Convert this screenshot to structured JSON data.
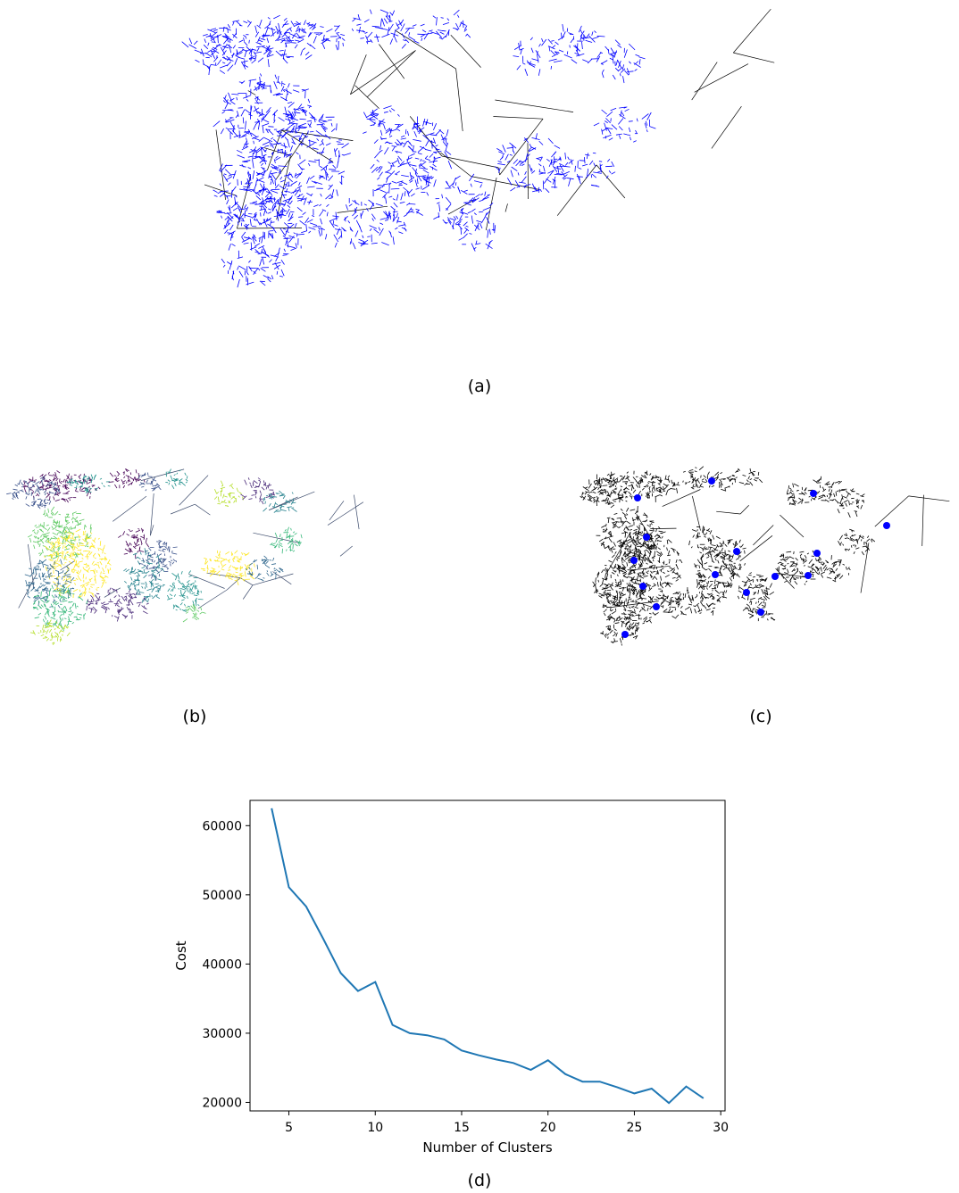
{
  "captions": {
    "a": "(a)",
    "b": "(b)",
    "c": "(c)",
    "d": "(d)"
  },
  "colors": {
    "network_blue": "#0000ff",
    "edge_black": "#000000",
    "line": "#1f77b4",
    "cluster_palette": [
      "#440154",
      "#3b528b",
      "#21918c",
      "#5ec962",
      "#fde725",
      "#31688e",
      "#35b779",
      "#b5de2b",
      "#482878",
      "#26828e"
    ]
  },
  "chart_data": {
    "type": "line",
    "title": "",
    "xlabel": "Number of Clusters",
    "ylabel": "Cost",
    "x": [
      4,
      5,
      6,
      7,
      8,
      9,
      10,
      11,
      12,
      13,
      14,
      15,
      16,
      17,
      18,
      19,
      20,
      21,
      22,
      23,
      24,
      25,
      26,
      27,
      28,
      29
    ],
    "series": [
      {
        "values": [
          62500,
          51100,
          48300,
          43600,
          38700,
          36100,
          37400,
          31200,
          30000,
          29700,
          29100,
          27500,
          26800,
          26200,
          25700,
          24700,
          26100,
          24100,
          23000,
          23000,
          22200,
          21300,
          22000,
          19900,
          22300,
          20600
        ]
      }
    ],
    "xlim": [
      2.75,
      30.25
    ],
    "ylim": [
      18770,
      63650
    ],
    "xticks": [
      5,
      10,
      15,
      20,
      25,
      30
    ],
    "yticks": [
      20000,
      30000,
      40000,
      50000,
      60000
    ],
    "grid": false
  }
}
